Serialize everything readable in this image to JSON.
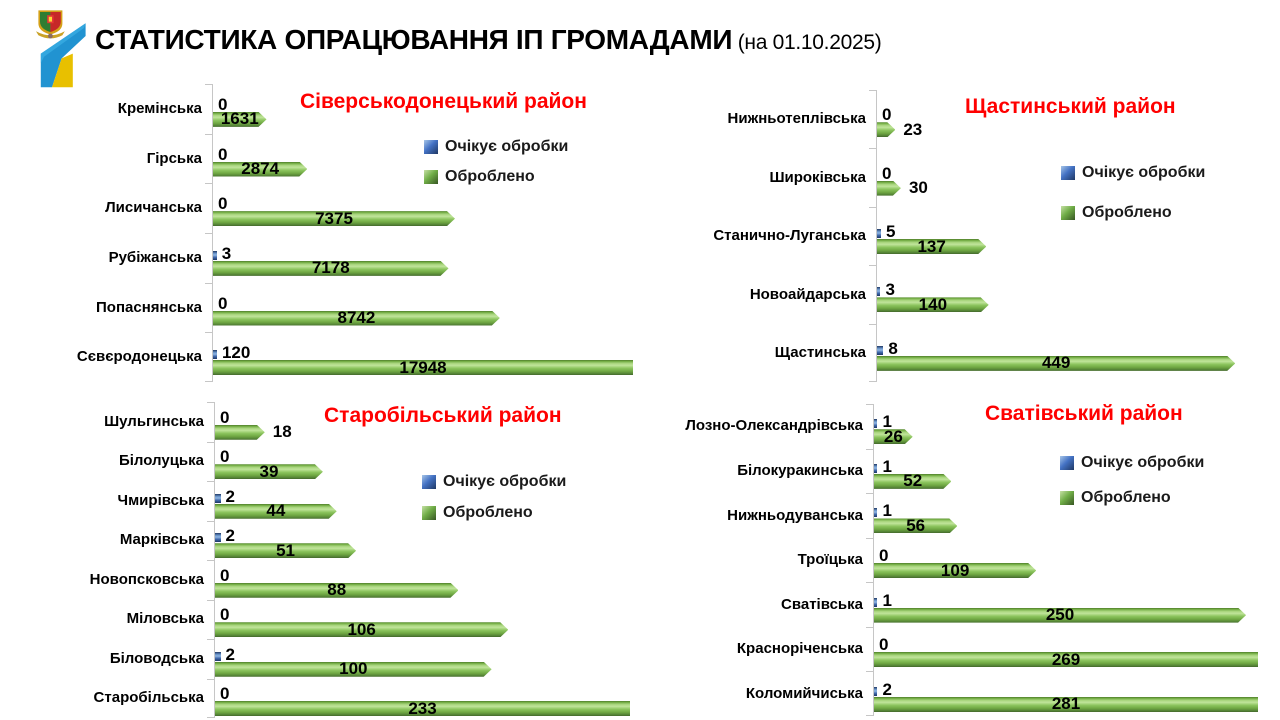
{
  "header": {
    "title_bold": "СТАТИСТИКА ОПРАЦЮВАННЯ ІП ГРОМАДАМИ",
    "title_suffix": " (на 01.10.2025)",
    "logo": "luhansk-oblast-emblem-with-ukraine-ribbon"
  },
  "legend": {
    "pending": "Очікує обробки",
    "processed": "Оброблено"
  },
  "colors": {
    "district_title": "#ff0000",
    "processed_green": "#7ab648",
    "pending_blue": "#2e5aa0",
    "axis": "#c6c6c6",
    "text": "#000000"
  },
  "chart_data": [
    {
      "type": "bar",
      "orientation": "horizontal",
      "district": "Сіверськодонецький район",
      "legend_position": "inside-right",
      "axis_max": 12800,
      "categories": [
        "Кремінська",
        "Гірська",
        "Лисичанська",
        "Рубіжанська",
        "Попаснянська",
        "Сєвєродонецька"
      ],
      "series": [
        {
          "name": "Очікує обробки",
          "values": [
            0,
            0,
            0,
            3,
            0,
            120
          ]
        },
        {
          "name": "Оброблено",
          "values": [
            1631,
            2874,
            7375,
            7178,
            8742,
            17948
          ]
        }
      ],
      "processed_label_pos": [
        "in",
        "in",
        "in",
        "in",
        "in",
        "in"
      ]
    },
    {
      "type": "bar",
      "orientation": "horizontal",
      "district": "Щастинський район",
      "legend_position": "inside-right",
      "axis_max": 480,
      "categories": [
        "Нижньотеплівська",
        "Широківська",
        "Станично-Луганська",
        "Новоайдарська",
        "Щастинська"
      ],
      "series": [
        {
          "name": "Очікує обробки",
          "values": [
            0,
            0,
            5,
            3,
            8
          ]
        },
        {
          "name": "Оброблено",
          "values": [
            23,
            30,
            137,
            140,
            449
          ]
        }
      ],
      "processed_label_pos": [
        "out",
        "out",
        "in",
        "in",
        "in"
      ]
    },
    {
      "type": "bar",
      "orientation": "horizontal",
      "district": "Старобільський район",
      "legend_position": "inside-right",
      "axis_max": 150,
      "categories": [
        "Шульгинська",
        "Білолуцька",
        "Чмирівська",
        "Марківська",
        "Новопсковська",
        "Міловська",
        "Біловодська",
        "Старобільська"
      ],
      "series": [
        {
          "name": "Очікує обробки",
          "values": [
            0,
            0,
            2,
            2,
            0,
            0,
            2,
            0
          ]
        },
        {
          "name": "Оброблено",
          "values": [
            18,
            39,
            44,
            51,
            88,
            106,
            100,
            233
          ]
        }
      ],
      "processed_label_pos": [
        "out",
        "in",
        "in",
        "in",
        "in",
        "in",
        "in",
        "in"
      ]
    },
    {
      "type": "bar",
      "orientation": "horizontal",
      "district": "Сватівський район",
      "legend_position": "inside-right",
      "axis_max": 258,
      "categories": [
        "Лозно-Олександрівська",
        "Білокуракинська",
        "Нижньодуванська",
        "Троїцька",
        "Сватівська",
        "Красноріченська",
        "Коломийчиська"
      ],
      "series": [
        {
          "name": "Очікує обробки",
          "values": [
            1,
            1,
            1,
            0,
            1,
            0,
            2
          ]
        },
        {
          "name": "Оброблено",
          "values": [
            26,
            52,
            56,
            109,
            250,
            269,
            281
          ]
        }
      ],
      "processed_label_pos": [
        "in",
        "in",
        "in",
        "in",
        "in",
        "in",
        "in"
      ]
    }
  ]
}
